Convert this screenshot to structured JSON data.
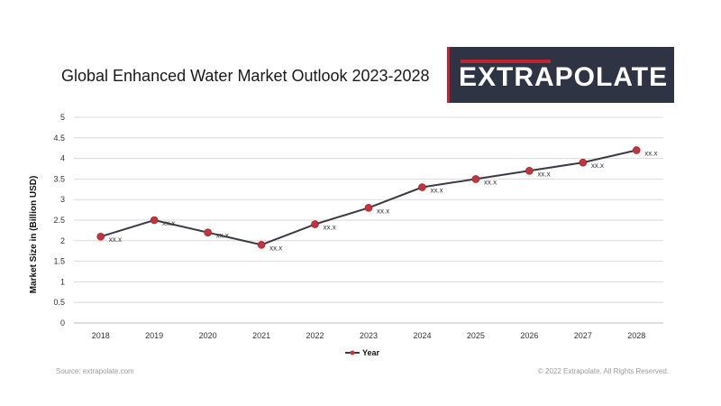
{
  "header": {
    "title": "Global Enhanced Water Market Outlook 2023-2028",
    "logo_text": "EXTRAPOLATE"
  },
  "footer": {
    "source": "Source: extrapolate.com",
    "copyright": "© 2022  Extrapolate. All Rights Reserved."
  },
  "colors": {
    "line": "#3b3b46",
    "marker": "#c8323c",
    "brand_dark": "#2f3445",
    "brand_red": "#c0252f"
  },
  "chart_data": {
    "type": "line",
    "x": [
      "2018",
      "2019",
      "2020",
      "2021",
      "2022",
      "2023",
      "2024",
      "2025",
      "2026",
      "2027",
      "2028"
    ],
    "series": [
      {
        "name": "Year",
        "values": [
          2.1,
          2.5,
          2.2,
          1.9,
          2.4,
          2.8,
          3.3,
          3.5,
          3.7,
          3.9,
          4.2
        ],
        "labels": [
          "xx.x",
          "xx.x",
          "xx.x",
          "xx.x",
          "xx.x",
          "xx.x",
          "xx.x",
          "xx.x",
          "xx.x",
          "xx.x",
          "xx.x"
        ]
      }
    ],
    "yticks": [
      "0",
      "0.5",
      "1",
      "1.5",
      "2",
      "2.5",
      "3",
      "3.5",
      "4",
      "4.5",
      "5"
    ],
    "ylim": [
      0,
      5
    ],
    "xlabel": "",
    "ylabel": "Market Size in (Billion USD)",
    "grid": true,
    "legend": "bottom"
  }
}
